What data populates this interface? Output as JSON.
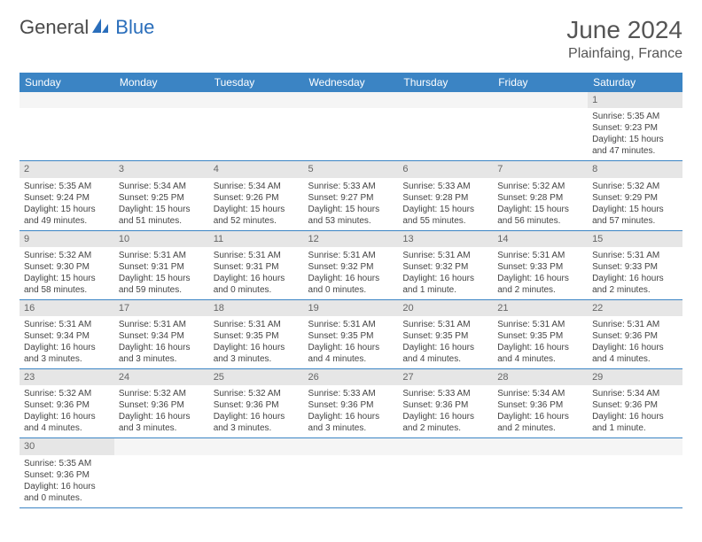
{
  "logo": {
    "text1": "General",
    "text2": "Blue"
  },
  "title": "June 2024",
  "location": "Plainfaing, France",
  "colors": {
    "header_bg": "#3b84c4",
    "header_fg": "#ffffff",
    "daynum_bg": "#e6e6e6",
    "border": "#3b84c4",
    "logo_blue": "#2a6ebb",
    "logo_gray": "#4a4a4a"
  },
  "weekdays": [
    "Sunday",
    "Monday",
    "Tuesday",
    "Wednesday",
    "Thursday",
    "Friday",
    "Saturday"
  ],
  "weeks": [
    {
      "nums": [
        "",
        "",
        "",
        "",
        "",
        "",
        "1"
      ],
      "cells": [
        null,
        null,
        null,
        null,
        null,
        null,
        {
          "sunrise": "Sunrise: 5:35 AM",
          "sunset": "Sunset: 9:23 PM",
          "daylight": "Daylight: 15 hours and 47 minutes."
        }
      ]
    },
    {
      "nums": [
        "2",
        "3",
        "4",
        "5",
        "6",
        "7",
        "8"
      ],
      "cells": [
        {
          "sunrise": "Sunrise: 5:35 AM",
          "sunset": "Sunset: 9:24 PM",
          "daylight": "Daylight: 15 hours and 49 minutes."
        },
        {
          "sunrise": "Sunrise: 5:34 AM",
          "sunset": "Sunset: 9:25 PM",
          "daylight": "Daylight: 15 hours and 51 minutes."
        },
        {
          "sunrise": "Sunrise: 5:34 AM",
          "sunset": "Sunset: 9:26 PM",
          "daylight": "Daylight: 15 hours and 52 minutes."
        },
        {
          "sunrise": "Sunrise: 5:33 AM",
          "sunset": "Sunset: 9:27 PM",
          "daylight": "Daylight: 15 hours and 53 minutes."
        },
        {
          "sunrise": "Sunrise: 5:33 AM",
          "sunset": "Sunset: 9:28 PM",
          "daylight": "Daylight: 15 hours and 55 minutes."
        },
        {
          "sunrise": "Sunrise: 5:32 AM",
          "sunset": "Sunset: 9:28 PM",
          "daylight": "Daylight: 15 hours and 56 minutes."
        },
        {
          "sunrise": "Sunrise: 5:32 AM",
          "sunset": "Sunset: 9:29 PM",
          "daylight": "Daylight: 15 hours and 57 minutes."
        }
      ]
    },
    {
      "nums": [
        "9",
        "10",
        "11",
        "12",
        "13",
        "14",
        "15"
      ],
      "cells": [
        {
          "sunrise": "Sunrise: 5:32 AM",
          "sunset": "Sunset: 9:30 PM",
          "daylight": "Daylight: 15 hours and 58 minutes."
        },
        {
          "sunrise": "Sunrise: 5:31 AM",
          "sunset": "Sunset: 9:31 PM",
          "daylight": "Daylight: 15 hours and 59 minutes."
        },
        {
          "sunrise": "Sunrise: 5:31 AM",
          "sunset": "Sunset: 9:31 PM",
          "daylight": "Daylight: 16 hours and 0 minutes."
        },
        {
          "sunrise": "Sunrise: 5:31 AM",
          "sunset": "Sunset: 9:32 PM",
          "daylight": "Daylight: 16 hours and 0 minutes."
        },
        {
          "sunrise": "Sunrise: 5:31 AM",
          "sunset": "Sunset: 9:32 PM",
          "daylight": "Daylight: 16 hours and 1 minute."
        },
        {
          "sunrise": "Sunrise: 5:31 AM",
          "sunset": "Sunset: 9:33 PM",
          "daylight": "Daylight: 16 hours and 2 minutes."
        },
        {
          "sunrise": "Sunrise: 5:31 AM",
          "sunset": "Sunset: 9:33 PM",
          "daylight": "Daylight: 16 hours and 2 minutes."
        }
      ]
    },
    {
      "nums": [
        "16",
        "17",
        "18",
        "19",
        "20",
        "21",
        "22"
      ],
      "cells": [
        {
          "sunrise": "Sunrise: 5:31 AM",
          "sunset": "Sunset: 9:34 PM",
          "daylight": "Daylight: 16 hours and 3 minutes."
        },
        {
          "sunrise": "Sunrise: 5:31 AM",
          "sunset": "Sunset: 9:34 PM",
          "daylight": "Daylight: 16 hours and 3 minutes."
        },
        {
          "sunrise": "Sunrise: 5:31 AM",
          "sunset": "Sunset: 9:35 PM",
          "daylight": "Daylight: 16 hours and 3 minutes."
        },
        {
          "sunrise": "Sunrise: 5:31 AM",
          "sunset": "Sunset: 9:35 PM",
          "daylight": "Daylight: 16 hours and 4 minutes."
        },
        {
          "sunrise": "Sunrise: 5:31 AM",
          "sunset": "Sunset: 9:35 PM",
          "daylight": "Daylight: 16 hours and 4 minutes."
        },
        {
          "sunrise": "Sunrise: 5:31 AM",
          "sunset": "Sunset: 9:35 PM",
          "daylight": "Daylight: 16 hours and 4 minutes."
        },
        {
          "sunrise": "Sunrise: 5:31 AM",
          "sunset": "Sunset: 9:36 PM",
          "daylight": "Daylight: 16 hours and 4 minutes."
        }
      ]
    },
    {
      "nums": [
        "23",
        "24",
        "25",
        "26",
        "27",
        "28",
        "29"
      ],
      "cells": [
        {
          "sunrise": "Sunrise: 5:32 AM",
          "sunset": "Sunset: 9:36 PM",
          "daylight": "Daylight: 16 hours and 4 minutes."
        },
        {
          "sunrise": "Sunrise: 5:32 AM",
          "sunset": "Sunset: 9:36 PM",
          "daylight": "Daylight: 16 hours and 3 minutes."
        },
        {
          "sunrise": "Sunrise: 5:32 AM",
          "sunset": "Sunset: 9:36 PM",
          "daylight": "Daylight: 16 hours and 3 minutes."
        },
        {
          "sunrise": "Sunrise: 5:33 AM",
          "sunset": "Sunset: 9:36 PM",
          "daylight": "Daylight: 16 hours and 3 minutes."
        },
        {
          "sunrise": "Sunrise: 5:33 AM",
          "sunset": "Sunset: 9:36 PM",
          "daylight": "Daylight: 16 hours and 2 minutes."
        },
        {
          "sunrise": "Sunrise: 5:34 AM",
          "sunset": "Sunset: 9:36 PM",
          "daylight": "Daylight: 16 hours and 2 minutes."
        },
        {
          "sunrise": "Sunrise: 5:34 AM",
          "sunset": "Sunset: 9:36 PM",
          "daylight": "Daylight: 16 hours and 1 minute."
        }
      ]
    },
    {
      "nums": [
        "30",
        "",
        "",
        "",
        "",
        "",
        ""
      ],
      "cells": [
        {
          "sunrise": "Sunrise: 5:35 AM",
          "sunset": "Sunset: 9:36 PM",
          "daylight": "Daylight: 16 hours and 0 minutes."
        },
        null,
        null,
        null,
        null,
        null,
        null
      ]
    }
  ]
}
